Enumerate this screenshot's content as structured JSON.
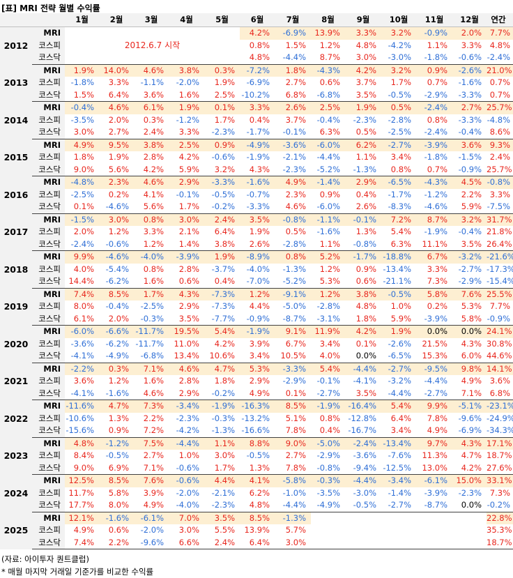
{
  "title": "[표] MRI 전략 월별 수익률",
  "headers": [
    "1월",
    "2월",
    "3월",
    "4월",
    "5월",
    "6월",
    "7월",
    "8월",
    "9월",
    "10월",
    "11월",
    "12월",
    "연간"
  ],
  "row_labels": [
    "MRI",
    "코스피",
    "코스닥"
  ],
  "start_note": "2012.6.7 시작",
  "years": [
    {
      "year": "2012",
      "rows": [
        [
          "",
          "",
          "",
          "",
          "",
          "4.2%",
          "-6.9%",
          "13.9%",
          "3.3%",
          "3.2%",
          "-0.9%",
          "2.0%",
          "7.7%"
        ],
        [
          "",
          "",
          "",
          "",
          "",
          "0.8%",
          "1.5%",
          "1.2%",
          "4.8%",
          "-4.2%",
          "1.1%",
          "3.3%",
          "4.8%"
        ],
        [
          "",
          "",
          "",
          "",
          "",
          "4.8%",
          "-4.4%",
          "8.7%",
          "3.0%",
          "-3.0%",
          "-1.8%",
          "-0.6%",
          "-2.4%"
        ]
      ]
    },
    {
      "year": "2013",
      "rows": [
        [
          "1.9%",
          "14.0%",
          "4.6%",
          "3.8%",
          "0.3%",
          "-7.2%",
          "1.8%",
          "-4.3%",
          "4.2%",
          "3.2%",
          "0.9%",
          "-2.6%",
          "21.0%"
        ],
        [
          "-1.8%",
          "3.3%",
          "-1.1%",
          "-2.0%",
          "1.9%",
          "-6.9%",
          "2.7%",
          "0.6%",
          "3.7%",
          "1.7%",
          "0.7%",
          "-1.6%",
          "0.7%"
        ],
        [
          "1.5%",
          "6.4%",
          "3.6%",
          "1.6%",
          "2.5%",
          "-10.2%",
          "6.8%",
          "-6.8%",
          "3.5%",
          "-0.5%",
          "-2.9%",
          "-3.3%",
          "0.7%"
        ]
      ]
    },
    {
      "year": "2014",
      "rows": [
        [
          "-0.4%",
          "4.6%",
          "6.1%",
          "1.9%",
          "0.1%",
          "3.3%",
          "2.6%",
          "2.5%",
          "1.9%",
          "0.5%",
          "-2.4%",
          "2.7%",
          "25.7%"
        ],
        [
          "-3.5%",
          "2.0%",
          "0.3%",
          "-1.2%",
          "1.7%",
          "0.4%",
          "3.7%",
          "-0.4%",
          "-2.3%",
          "-2.8%",
          "0.8%",
          "-3.3%",
          "-4.8%"
        ],
        [
          "3.0%",
          "2.7%",
          "2.4%",
          "3.3%",
          "-2.3%",
          "-1.7%",
          "-0.1%",
          "6.3%",
          "0.5%",
          "-2.5%",
          "-2.4%",
          "-0.4%",
          "8.6%"
        ]
      ]
    },
    {
      "year": "2015",
      "rows": [
        [
          "4.9%",
          "9.5%",
          "3.8%",
          "2.5%",
          "0.9%",
          "-4.9%",
          "-3.6%",
          "-6.0%",
          "6.2%",
          "-2.7%",
          "-3.9%",
          "3.6%",
          "9.3%"
        ],
        [
          "1.8%",
          "1.9%",
          "2.8%",
          "4.2%",
          "-0.6%",
          "-1.9%",
          "-2.1%",
          "-4.4%",
          "1.1%",
          "3.4%",
          "-1.8%",
          "-1.5%",
          "2.4%"
        ],
        [
          "9.0%",
          "5.6%",
          "4.2%",
          "5.9%",
          "3.2%",
          "4.3%",
          "-2.3%",
          "-5.2%",
          "-1.3%",
          "0.8%",
          "0.7%",
          "-0.9%",
          "25.7%"
        ]
      ]
    },
    {
      "year": "2016",
      "rows": [
        [
          "-4.8%",
          "2.3%",
          "4.6%",
          "2.9%",
          "-3.3%",
          "-1.6%",
          "4.9%",
          "-1.4%",
          "2.9%",
          "-6.5%",
          "-4.3%",
          "4.5%",
          "-0.8%"
        ],
        [
          "-2.5%",
          "0.2%",
          "4.1%",
          "-0.1%",
          "-0.5%",
          "-0.7%",
          "2.3%",
          "0.9%",
          "0.4%",
          "-1.7%",
          "-1.2%",
          "2.2%",
          "3.3%"
        ],
        [
          "0.1%",
          "-4.6%",
          "5.6%",
          "1.7%",
          "-0.2%",
          "-3.3%",
          "4.6%",
          "-6.0%",
          "2.6%",
          "-8.3%",
          "-4.6%",
          "5.9%",
          "-7.5%"
        ]
      ]
    },
    {
      "year": "2017",
      "rows": [
        [
          "-1.5%",
          "3.0%",
          "0.8%",
          "3.0%",
          "2.4%",
          "3.5%",
          "-0.8%",
          "-1.1%",
          "-0.1%",
          "7.2%",
          "8.7%",
          "3.2%",
          "31.7%"
        ],
        [
          "2.0%",
          "1.2%",
          "3.3%",
          "2.1%",
          "6.4%",
          "1.9%",
          "0.5%",
          "-1.6%",
          "1.3%",
          "5.4%",
          "-1.9%",
          "-0.4%",
          "21.8%"
        ],
        [
          "-2.4%",
          "-0.6%",
          "1.2%",
          "1.4%",
          "3.8%",
          "2.6%",
          "-2.8%",
          "1.1%",
          "-0.8%",
          "6.3%",
          "11.1%",
          "3.5%",
          "26.4%"
        ]
      ]
    },
    {
      "year": "2018",
      "rows": [
        [
          "9.9%",
          "-4.6%",
          "-4.0%",
          "-3.9%",
          "1.9%",
          "-8.9%",
          "0.8%",
          "5.2%",
          "-1.7%",
          "-18.8%",
          "6.7%",
          "-3.2%",
          "-21.6%"
        ],
        [
          "4.0%",
          "-5.4%",
          "0.8%",
          "2.8%",
          "-3.7%",
          "-4.0%",
          "-1.3%",
          "1.2%",
          "0.9%",
          "-13.4%",
          "3.3%",
          "-2.7%",
          "-17.3%"
        ],
        [
          "14.4%",
          "-6.2%",
          "1.6%",
          "0.6%",
          "0.4%",
          "-7.0%",
          "-5.2%",
          "5.3%",
          "0.6%",
          "-21.1%",
          "7.3%",
          "-2.9%",
          "-15.4%"
        ]
      ]
    },
    {
      "year": "2019",
      "rows": [
        [
          "7.4%",
          "8.5%",
          "1.7%",
          "4.3%",
          "-7.3%",
          "1.2%",
          "-9.1%",
          "1.2%",
          "3.8%",
          "-0.5%",
          "5.8%",
          "7.6%",
          "25.5%"
        ],
        [
          "8.0%",
          "-0.4%",
          "-2.5%",
          "2.9%",
          "-7.3%",
          "4.4%",
          "-5.0%",
          "-2.8%",
          "4.8%",
          "1.0%",
          "0.2%",
          "5.3%",
          "7.7%"
        ],
        [
          "6.1%",
          "2.0%",
          "-0.3%",
          "3.5%",
          "-7.7%",
          "-0.9%",
          "-8.7%",
          "-3.1%",
          "1.8%",
          "5.9%",
          "-3.9%",
          "5.8%",
          "-0.9%"
        ]
      ]
    },
    {
      "year": "2020",
      "rows": [
        [
          "-6.0%",
          "-6.6%",
          "-11.7%",
          "19.5%",
          "5.4%",
          "-1.9%",
          "9.1%",
          "11.9%",
          "4.2%",
          "1.9%",
          "0.0%",
          "0.0%",
          "24.1%"
        ],
        [
          "-3.6%",
          "-6.2%",
          "-11.7%",
          "11.0%",
          "4.2%",
          "3.9%",
          "6.7%",
          "3.4%",
          "0.1%",
          "-2.6%",
          "21.5%",
          "4.3%",
          "30.8%"
        ],
        [
          "-4.1%",
          "-4.9%",
          "-6.8%",
          "13.4%",
          "10.6%",
          "3.4%",
          "10.5%",
          "4.0%",
          "0.0%",
          "-6.5%",
          "15.3%",
          "6.0%",
          "44.6%"
        ]
      ]
    },
    {
      "year": "2021",
      "rows": [
        [
          "-2.2%",
          "0.3%",
          "7.1%",
          "4.6%",
          "4.7%",
          "5.3%",
          "-3.3%",
          "5.4%",
          "-4.4%",
          "-2.7%",
          "-9.5%",
          "9.8%",
          "14.1%"
        ],
        [
          "3.6%",
          "1.2%",
          "1.6%",
          "2.8%",
          "1.8%",
          "2.9%",
          "-2.9%",
          "-0.1%",
          "-4.1%",
          "-3.2%",
          "-4.4%",
          "4.9%",
          "3.6%"
        ],
        [
          "-4.1%",
          "-1.6%",
          "4.6%",
          "2.9%",
          "-0.2%",
          "4.9%",
          "0.1%",
          "-2.7%",
          "3.5%",
          "-4.4%",
          "-2.7%",
          "7.1%",
          "6.8%"
        ]
      ]
    },
    {
      "year": "2022",
      "rows": [
        [
          "-11.6%",
          "4.7%",
          "7.3%",
          "-3.4%",
          "-1.9%",
          "-16.3%",
          "8.5%",
          "-1.9%",
          "-16.4%",
          "5.4%",
          "9.9%",
          "-5.1%",
          "-23.1%"
        ],
        [
          "-10.6%",
          "1.3%",
          "2.2%",
          "-2.3%",
          "-0.3%",
          "-13.2%",
          "5.1%",
          "0.8%",
          "-12.8%",
          "6.4%",
          "7.8%",
          "-9.6%",
          "-24.9%"
        ],
        [
          "-15.6%",
          "0.9%",
          "7.2%",
          "-4.2%",
          "-1.3%",
          "-16.6%",
          "7.8%",
          "0.4%",
          "-16.7%",
          "3.4%",
          "4.9%",
          "-6.9%",
          "-34.3%"
        ]
      ]
    },
    {
      "year": "2023",
      "rows": [
        [
          "4.8%",
          "-1.2%",
          "7.5%",
          "-4.4%",
          "1.1%",
          "8.8%",
          "9.0%",
          "-5.0%",
          "-2.4%",
          "-13.4%",
          "9.7%",
          "4.3%",
          "17.1%"
        ],
        [
          "8.4%",
          "-0.5%",
          "2.7%",
          "1.0%",
          "3.0%",
          "-0.5%",
          "2.7%",
          "-2.9%",
          "-3.6%",
          "-7.6%",
          "11.3%",
          "4.7%",
          "18.7%"
        ],
        [
          "9.0%",
          "6.9%",
          "7.1%",
          "-0.6%",
          "1.7%",
          "1.3%",
          "7.8%",
          "-0.8%",
          "-9.4%",
          "-12.5%",
          "13.0%",
          "4.2%",
          "27.6%"
        ]
      ]
    },
    {
      "year": "2024",
      "rows": [
        [
          "12.5%",
          "8.5%",
          "7.6%",
          "-0.6%",
          "4.4%",
          "4.1%",
          "-5.8%",
          "-0.3%",
          "-4.4%",
          "-3.4%",
          "-6.1%",
          "15.0%",
          "33.1%"
        ],
        [
          "11.7%",
          "5.8%",
          "3.9%",
          "-2.0%",
          "-2.1%",
          "6.2%",
          "-1.0%",
          "-3.5%",
          "-3.0%",
          "-1.4%",
          "-3.9%",
          "-2.3%",
          "7.3%"
        ],
        [
          "17.7%",
          "8.0%",
          "4.9%",
          "-4.0%",
          "-2.3%",
          "4.8%",
          "-4.4%",
          "-4.9%",
          "-0.5%",
          "-2.7%",
          "-8.7%",
          "0.0%",
          "-0.2%"
        ]
      ]
    },
    {
      "year": "2025",
      "rows": [
        [
          "12.1%",
          "-1.6%",
          "-6.1%",
          "7.0%",
          "3.5%",
          "8.5%",
          "-1.3%",
          "",
          "",
          "",
          "",
          "",
          "22.8%"
        ],
        [
          "4.9%",
          "0.6%",
          "-2.0%",
          "3.0%",
          "5.5%",
          "13.9%",
          "5.7%",
          "",
          "",
          "",
          "",
          "",
          "35.3%"
        ],
        [
          "7.4%",
          "2.2%",
          "-9.6%",
          "6.6%",
          "2.4%",
          "6.4%",
          "3.0%",
          "",
          "",
          "",
          "",
          "",
          "18.7%"
        ]
      ]
    }
  ],
  "source": "(자료: 아이투자 퀀트클럽)",
  "footnote": "* 매월 마지막 거래일 기준가를 비교한 수익률"
}
